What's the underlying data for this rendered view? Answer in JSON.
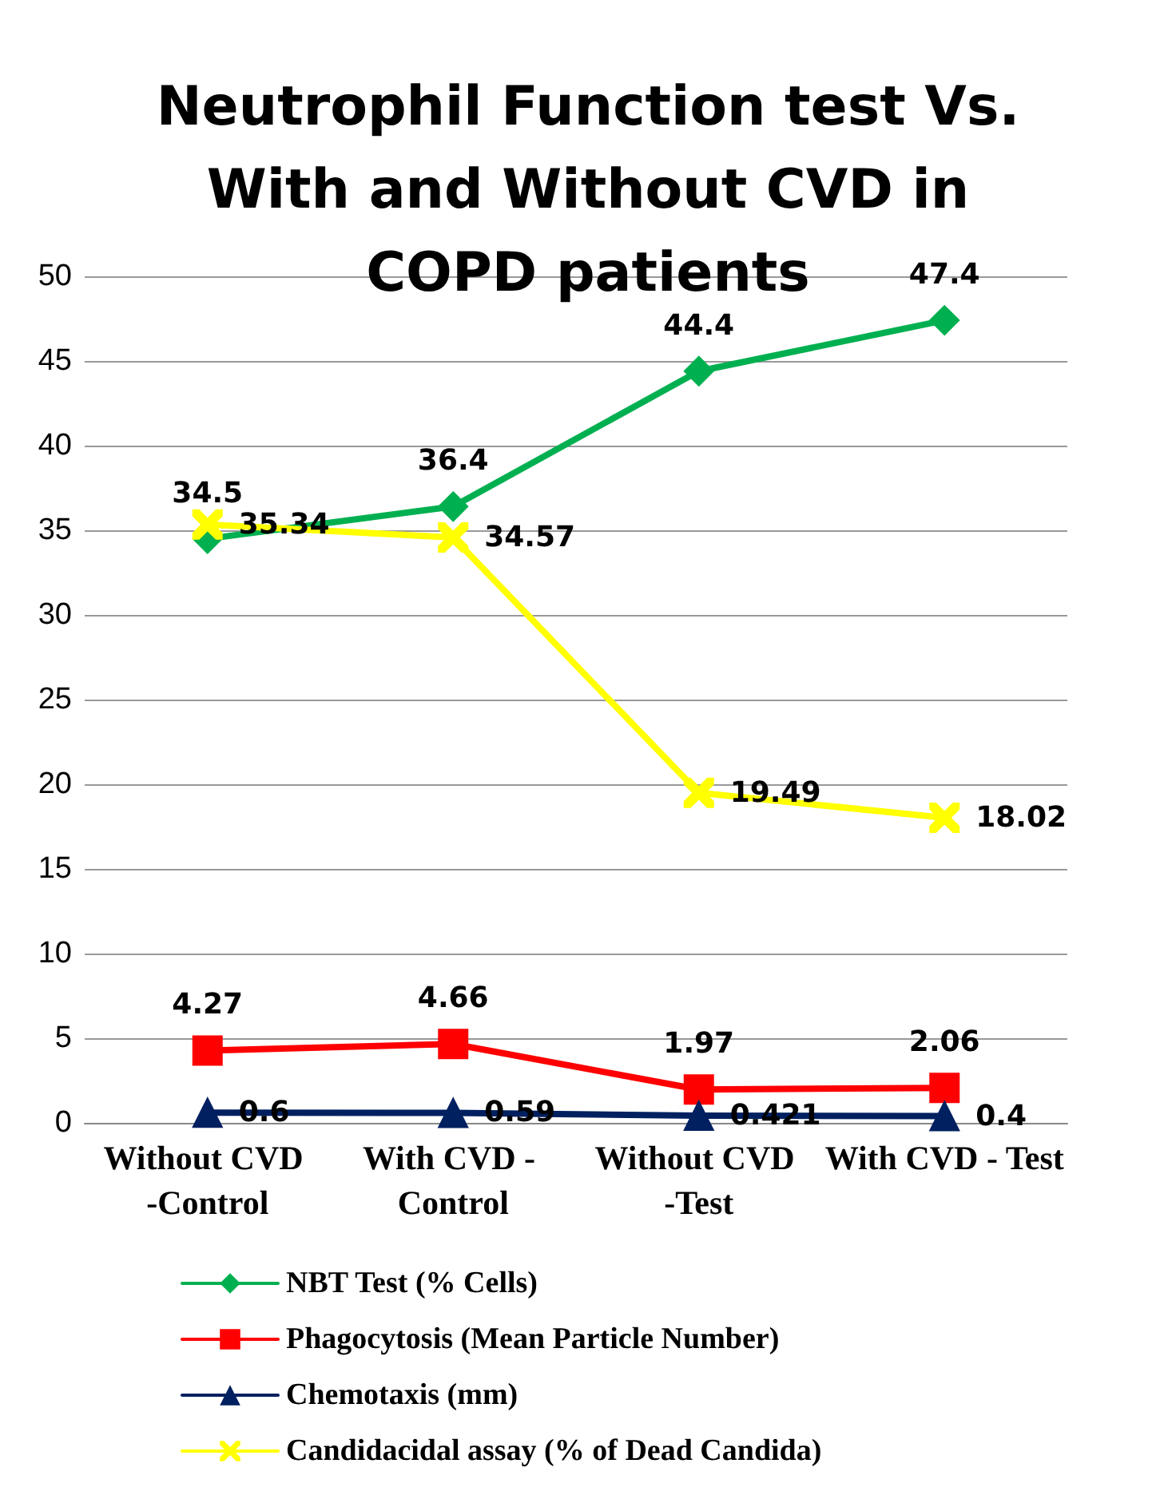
{
  "chart_data": {
    "type": "line",
    "title": "Neutrophil Function test Vs.\nWith and Without CVD in\nCOPD patients",
    "categories": [
      "Without CVD -Control",
      "With CVD - Control",
      "Without CVD -Test",
      "With CVD - Test"
    ],
    "series": [
      {
        "name": "NBT Test (% Cells)",
        "color": "#00b050",
        "marker": "diamond",
        "values": [
          34.5,
          36.4,
          44.4,
          47.4
        ]
      },
      {
        "name": "Phagocytosis (Mean Particle Number)",
        "color": "#ff0000",
        "marker": "square",
        "values": [
          4.27,
          4.66,
          1.97,
          2.06
        ]
      },
      {
        "name": "Chemotaxis (mm)",
        "color": "#002060",
        "marker": "triangle",
        "values": [
          0.6,
          0.59,
          0.421,
          0.4
        ]
      },
      {
        "name": "Candidacidal assay (% of Dead Candida)",
        "color": "#ffff00",
        "marker": "cross",
        "values": [
          35.34,
          34.57,
          19.49,
          18.02
        ]
      }
    ],
    "ylim": [
      0,
      50
    ],
    "yticks": [
      0,
      5,
      10,
      15,
      20,
      25,
      30,
      35,
      40,
      45,
      50
    ],
    "grid": "y",
    "legend": "bottom",
    "data_labels": true
  }
}
